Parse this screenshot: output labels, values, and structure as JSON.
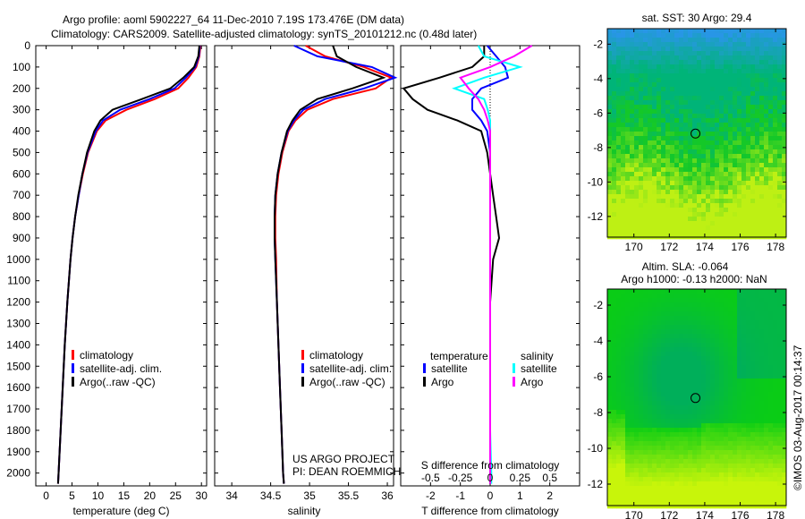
{
  "title_line1": "Argo profile: aoml 5902227_64 11-Dec-2010 7.19S 173.476E (DM data)",
  "title_line2": "Climatology: CARS2009. Satellite-adjusted climatology: synTS_20101212.nc (0.48d later)",
  "credit": {
    "line1": "US ARGO PROJECT",
    "line2": "PI: DEAN ROEMMICH"
  },
  "copyright": "©IMOS 03-Aug-2017 00:14:37",
  "colors": {
    "climatology": "#ff0000",
    "satellite": "#0000ff",
    "argo": "#000000",
    "sal_satellite": "#00ffff",
    "sal_argo": "#ff00ff"
  },
  "chart_data": [
    {
      "type": "line",
      "id": "temperature",
      "xlabel": "temperature (deg C)",
      "ylabel": "",
      "xlim": [
        -2,
        31
      ],
      "ylim": [
        2060,
        0
      ],
      "xticks": [
        "0",
        "5",
        "10",
        "15",
        "20",
        "25",
        "30"
      ],
      "xtick_values": [
        0,
        5,
        10,
        15,
        20,
        25,
        30
      ],
      "yticks": [
        "0",
        "100",
        "200",
        "300",
        "400",
        "500",
        "600",
        "700",
        "800",
        "900",
        "1000",
        "1100",
        "1200",
        "1300",
        "1400",
        "1500",
        "1600",
        "1700",
        "1800",
        "1900",
        "2000"
      ],
      "depth": [
        0,
        50,
        100,
        150,
        200,
        250,
        300,
        350,
        400,
        500,
        600,
        700,
        800,
        900,
        1000,
        1200,
        1400,
        1600,
        1800,
        2000,
        2050
      ],
      "series": [
        {
          "name": "climatology",
          "color_key": "climatology",
          "values": [
            29.8,
            29.6,
            29.0,
            27.5,
            25.5,
            21.0,
            15.5,
            11.5,
            9.8,
            8.1,
            7.1,
            6.3,
            5.6,
            5.1,
            4.7,
            4.1,
            3.6,
            3.2,
            2.8,
            2.4,
            2.3
          ]
        },
        {
          "name": "satellite-adj. clim.",
          "color_key": "satellite",
          "values": [
            29.7,
            29.5,
            28.8,
            27.0,
            24.8,
            20.0,
            14.3,
            11.0,
            9.6,
            8.0,
            7.0,
            6.3,
            5.6,
            5.1,
            4.7,
            4.1,
            3.6,
            3.2,
            2.8,
            2.4,
            2.3
          ]
        },
        {
          "name": "Argo(..raw -QC)",
          "color_key": "argo",
          "values": [
            29.6,
            29.4,
            28.6,
            26.5,
            24.0,
            18.5,
            12.8,
            10.5,
            9.3,
            7.9,
            7.0,
            6.2,
            5.6,
            5.1,
            4.7,
            4.1,
            3.6,
            3.2,
            2.8,
            2.4,
            2.3
          ]
        }
      ]
    },
    {
      "type": "line",
      "id": "salinity",
      "xlabel": "salinity",
      "xlim": [
        33.78,
        36.08
      ],
      "ylim": [
        2060,
        0
      ],
      "xticks": [
        "34",
        "34.5",
        "35",
        "35.5",
        "36"
      ],
      "xtick_values": [
        34,
        34.5,
        35,
        35.5,
        36
      ],
      "depth": [
        0,
        50,
        100,
        150,
        200,
        250,
        300,
        350,
        400,
        500,
        600,
        700,
        800,
        900,
        1000,
        1200,
        1400,
        1600,
        1800,
        2000,
        2050
      ],
      "series": [
        {
          "name": "climatology",
          "color_key": "climatology",
          "values": [
            34.95,
            35.2,
            35.7,
            36.05,
            35.85,
            35.3,
            34.97,
            34.82,
            34.73,
            34.65,
            34.6,
            34.57,
            34.56,
            34.56,
            34.57,
            34.58,
            34.6,
            34.62,
            34.64,
            34.66,
            34.67
          ]
        },
        {
          "name": "satellite-adj. clim.",
          "color_key": "satellite",
          "values": [
            34.8,
            35.1,
            35.8,
            36.1,
            35.7,
            35.2,
            34.92,
            34.8,
            34.72,
            34.64,
            34.59,
            34.56,
            34.55,
            34.55,
            34.56,
            34.58,
            34.6,
            34.62,
            34.64,
            34.66,
            34.67
          ]
        },
        {
          "name": "Argo(..raw -QC)",
          "color_key": "argo",
          "values": [
            35.3,
            35.35,
            35.6,
            35.95,
            35.55,
            35.1,
            34.88,
            34.78,
            34.71,
            34.64,
            34.59,
            34.56,
            34.55,
            34.55,
            34.56,
            34.58,
            34.6,
            34.62,
            34.64,
            34.66,
            34.67
          ]
        }
      ]
    },
    {
      "type": "line",
      "id": "difference",
      "xlabel": "T difference from climatology",
      "x2label": "S difference from climatology",
      "xlim": [
        -3,
        3
      ],
      "x2lim": [
        -0.75,
        0.75
      ],
      "ylim": [
        2060,
        0
      ],
      "xticks": [
        "-2",
        "-1",
        "0",
        "1",
        "2"
      ],
      "xtick_values": [
        -2,
        -1,
        0,
        1,
        2
      ],
      "x2ticks": [
        "-0.5",
        "-0.25",
        "0",
        "0.25",
        "0.5"
      ],
      "x2tick_values": [
        -0.5,
        -0.25,
        0,
        0.25,
        0.5
      ],
      "legend_headers": [
        "temperature",
        "salinity"
      ],
      "depth": [
        0,
        50,
        100,
        150,
        200,
        250,
        300,
        350,
        400,
        500,
        600,
        700,
        800,
        900,
        1000,
        1200,
        1400,
        1600,
        1800,
        2000,
        2050
      ],
      "series": [
        {
          "name": "satellite",
          "group": "temperature",
          "axis": "T",
          "color_key": "satellite",
          "values": [
            -0.1,
            0.2,
            0.5,
            0.6,
            -0.3,
            -0.6,
            -0.6,
            -0.3,
            -0.1,
            0,
            0,
            0,
            0,
            0,
            0,
            0,
            0,
            0,
            0,
            0,
            0
          ]
        },
        {
          "name": "Argo",
          "group": "temperature",
          "axis": "T",
          "color_key": "argo",
          "values": [
            -0.2,
            -0.2,
            -0.6,
            -1.7,
            -2.9,
            -2.6,
            -2.1,
            -1.1,
            -0.3,
            -0.1,
            0,
            0.1,
            0.2,
            0.3,
            0.1,
            0,
            0,
            0,
            0,
            0,
            0
          ]
        },
        {
          "name": "satellite",
          "group": "salinity",
          "axis": "S",
          "color_key": "sal_satellite",
          "values": [
            -0.1,
            -0.05,
            0.25,
            -0.05,
            -0.3,
            -0.05,
            -0.02,
            0,
            0,
            0,
            0,
            0,
            0,
            0,
            0,
            0,
            0,
            0,
            0,
            0.01,
            0.01
          ]
        },
        {
          "name": "Argo",
          "group": "salinity",
          "axis": "S",
          "color_key": "sal_argo",
          "values": [
            0.35,
            0.2,
            0.0,
            -0.25,
            -0.18,
            -0.1,
            -0.05,
            -0.02,
            0,
            0,
            0,
            0,
            0,
            0,
            0,
            0,
            0,
            0,
            0,
            0,
            0
          ]
        }
      ]
    },
    {
      "type": "heatmap",
      "id": "sst_map",
      "title": "sat. SST: 30 Argo: 29.4",
      "xlim": [
        168.5,
        178.6
      ],
      "ylim": [
        -13.2,
        -1.1
      ],
      "xticks": [
        "170",
        "172",
        "174",
        "176",
        "178"
      ],
      "xtick_values": [
        170,
        172,
        174,
        176,
        178
      ],
      "yticks": [
        "-2",
        "-4",
        "-6",
        "-8",
        "-10",
        "-12"
      ],
      "ytick_values": [
        -2,
        -4,
        -6,
        -8,
        -10,
        -12
      ],
      "marker": {
        "lon": 173.476,
        "lat": -7.19
      }
    },
    {
      "type": "heatmap",
      "id": "sla_map",
      "title": "Altim. SLA: -0.064",
      "subtitle": "Argo h1000: -0.13 h2000: NaN",
      "xlim": [
        168.5,
        178.6
      ],
      "ylim": [
        -13.2,
        -1.1
      ],
      "xticks": [
        "170",
        "172",
        "174",
        "176",
        "178"
      ],
      "xtick_values": [
        170,
        172,
        174,
        176,
        178
      ],
      "yticks": [
        "-2",
        "-4",
        "-6",
        "-8",
        "-10",
        "-12"
      ],
      "ytick_values": [
        -2,
        -4,
        -6,
        -8,
        -10,
        -12
      ],
      "marker": {
        "lon": 173.476,
        "lat": -7.19
      }
    }
  ]
}
